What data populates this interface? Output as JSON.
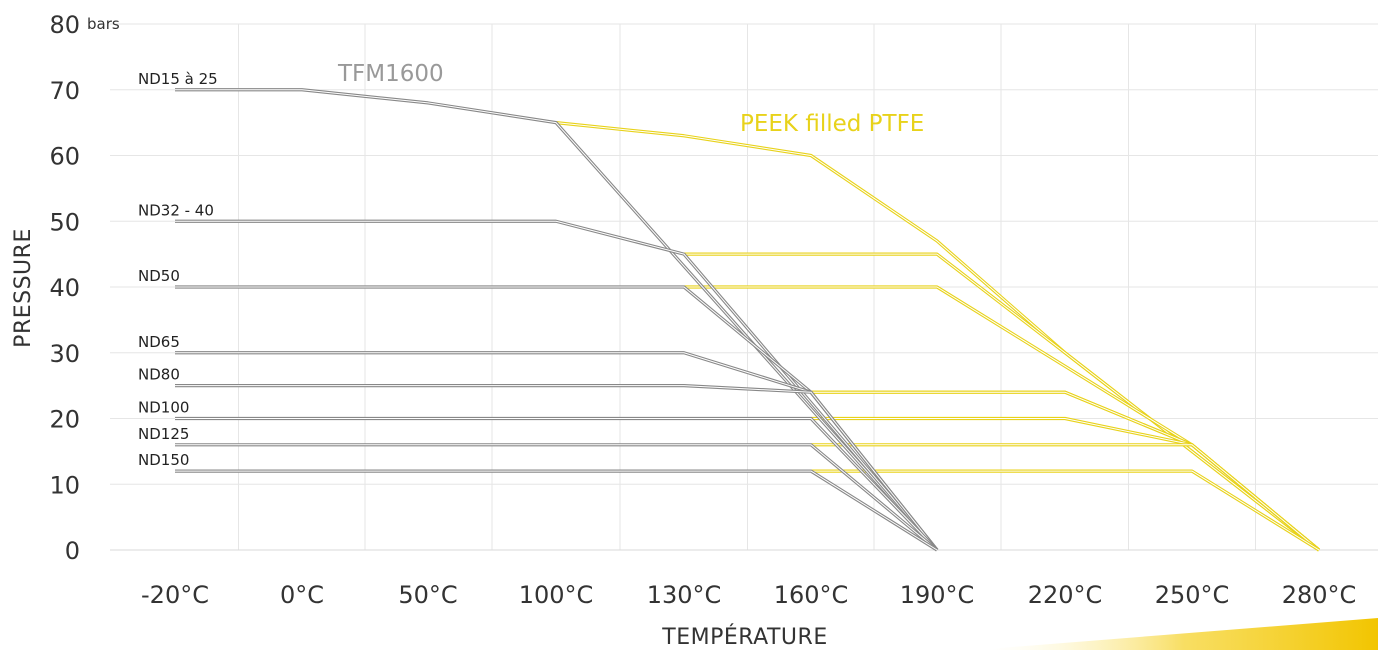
{
  "chart_data": {
    "type": "line",
    "ylabel": "PRESSURE",
    "xlabel": "TEMPÉRATURE",
    "y_unit": "bars",
    "y_ticks": [
      0,
      10,
      20,
      30,
      40,
      50,
      60,
      70,
      80
    ],
    "ylim": [
      0,
      80
    ],
    "categories": [
      "-20°C",
      "0°C",
      "50°C",
      "100°C",
      "130°C",
      "160°C",
      "190°C",
      "220°C",
      "250°C",
      "280°C"
    ],
    "grid": true,
    "materials": [
      {
        "name": "TFM1600",
        "color": "#888888"
      },
      {
        "name": "PEEK filled PTFE",
        "color": "#e8d21a"
      }
    ],
    "series": [
      {
        "name": "ND15 à 25",
        "tfm": [
          [
            0,
            70
          ],
          [
            1,
            70
          ],
          [
            2,
            68
          ],
          [
            3,
            65
          ],
          [
            6,
            0
          ]
        ],
        "peek": [
          [
            3,
            65
          ],
          [
            4,
            63
          ],
          [
            5,
            60
          ],
          [
            6,
            47
          ],
          [
            7,
            30
          ],
          [
            9,
            0
          ]
        ]
      },
      {
        "name": "ND32 - 40",
        "tfm": [
          [
            0,
            50
          ],
          [
            3,
            50
          ],
          [
            4,
            45
          ],
          [
            6,
            0
          ]
        ],
        "peek": [
          [
            4,
            45
          ],
          [
            6,
            45
          ],
          [
            7,
            30
          ],
          [
            9,
            0
          ]
        ]
      },
      {
        "name": "ND50",
        "tfm": [
          [
            0,
            40
          ],
          [
            4,
            40
          ],
          [
            5,
            24
          ],
          [
            6,
            0
          ]
        ],
        "peek": [
          [
            4,
            40
          ],
          [
            6,
            40
          ],
          [
            8,
            16
          ],
          [
            9,
            0
          ]
        ]
      },
      {
        "name": "ND65",
        "tfm": [
          [
            0,
            30
          ],
          [
            4,
            30
          ],
          [
            5,
            24
          ],
          [
            6,
            0
          ]
        ],
        "peek": [
          [
            5,
            24
          ],
          [
            7,
            24
          ],
          [
            8,
            16
          ],
          [
            9,
            0
          ]
        ]
      },
      {
        "name": "ND80",
        "tfm": [
          [
            0,
            25
          ],
          [
            4,
            25
          ],
          [
            5,
            24
          ],
          [
            6,
            0
          ]
        ],
        "peek": [
          [
            5,
            24
          ],
          [
            7,
            24
          ],
          [
            8,
            16
          ],
          [
            9,
            0
          ]
        ]
      },
      {
        "name": "ND100",
        "tfm": [
          [
            0,
            20
          ],
          [
            5,
            20
          ],
          [
            6,
            0
          ]
        ],
        "peek": [
          [
            5,
            20
          ],
          [
            7,
            20
          ],
          [
            8,
            16
          ],
          [
            9,
            0
          ]
        ]
      },
      {
        "name": "ND125",
        "tfm": [
          [
            0,
            16
          ],
          [
            5,
            16
          ],
          [
            6,
            0
          ]
        ],
        "peek": [
          [
            5,
            16
          ],
          [
            8,
            16
          ],
          [
            9,
            0
          ]
        ]
      },
      {
        "name": "ND150",
        "tfm": [
          [
            0,
            12
          ],
          [
            5,
            12
          ],
          [
            6,
            0
          ]
        ],
        "peek": [
          [
            5,
            12
          ],
          [
            8,
            12
          ],
          [
            9,
            0
          ]
        ]
      }
    ]
  }
}
